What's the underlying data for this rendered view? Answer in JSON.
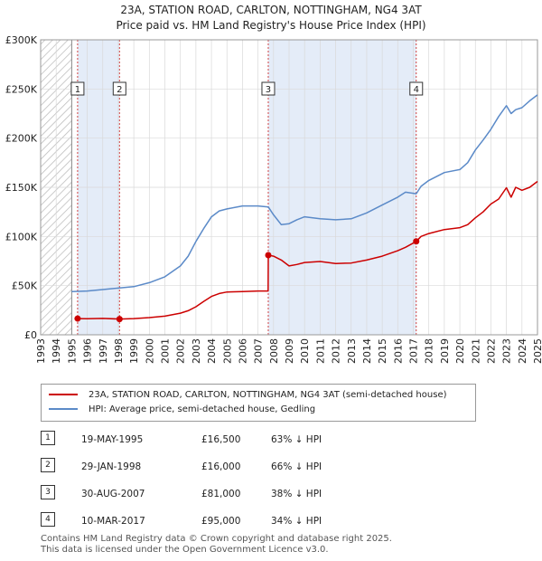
{
  "title_line1": "23A, STATION ROAD, CARLTON, NOTTINGHAM, NG4 3AT",
  "title_line2": "Price paid vs. HM Land Registry's House Price Index (HPI)",
  "legend": {
    "red_label": "23A, STATION ROAD, CARLTON, NOTTINGHAM, NG4 3AT (semi-detached house)",
    "blue_label": "HPI: Average price, semi-detached house, Gedling",
    "red_color": "#cc0000",
    "blue_color": "#5b8ac8"
  },
  "sales": [
    {
      "num": "1",
      "date": "19-MAY-1995",
      "price": "£16,500",
      "hpi": "63% ↓ HPI"
    },
    {
      "num": "2",
      "date": "29-JAN-1998",
      "price": "£16,000",
      "hpi": "66% ↓ HPI"
    },
    {
      "num": "3",
      "date": "30-AUG-2007",
      "price": "£81,000",
      "hpi": "38% ↓ HPI"
    },
    {
      "num": "4",
      "date": "10-MAR-2017",
      "price": "£95,000",
      "hpi": "34% ↓ HPI"
    }
  ],
  "footer_line1": "Contains HM Land Registry data © Crown copyright and database right 2025.",
  "footer_line2": "This data is licensed under the Open Government Licence v3.0.",
  "chart_data": {
    "type": "line",
    "title": "23A, STATION ROAD, CARLTON, NOTTINGHAM, NG4 3AT",
    "xlim": [
      1993,
      2025
    ],
    "ylim": [
      0,
      300000
    ],
    "x_ticks": [
      1993,
      1994,
      1995,
      1996,
      1997,
      1998,
      1999,
      2000,
      2001,
      2002,
      2003,
      2004,
      2005,
      2006,
      2007,
      2008,
      2009,
      2010,
      2011,
      2012,
      2013,
      2014,
      2015,
      2016,
      2017,
      2018,
      2019,
      2020,
      2021,
      2022,
      2023,
      2024,
      2025
    ],
    "y_ticks": [
      0,
      50000,
      100000,
      150000,
      200000,
      250000,
      300000
    ],
    "y_tick_labels": [
      "£0",
      "£50K",
      "£100K",
      "£150K",
      "£200K",
      "£250K",
      "£300K"
    ],
    "hatch_until": 1995.0,
    "shaded_ranges": [
      [
        1995.38,
        1998.08
      ],
      [
        2007.66,
        2017.19
      ]
    ],
    "series": [
      {
        "name": "23A, STATION ROAD, CARLTON, NOTTINGHAM, NG4 3AT (semi-detached house)",
        "color": "#cc0000",
        "x": [
          1995.38,
          1996,
          1997,
          1998.08,
          1999,
          2000,
          2001,
          2002,
          2002.5,
          2003,
          2003.5,
          2004,
          2004.5,
          2005,
          2006,
          2007,
          2007.65,
          2007.66,
          2008,
          2008.5,
          2009,
          2009.5,
          2010,
          2011,
          2012,
          2013,
          2014,
          2015,
          2016,
          2016.5,
          2017.19,
          2017.5,
          2018,
          2019,
          2020,
          2020.5,
          2021,
          2021.5,
          2022,
          2022.5,
          2023,
          2023.3,
          2023.6,
          2024,
          2024.5,
          2025
        ],
        "y": [
          16500,
          16300,
          16700,
          16000,
          16500,
          17500,
          19000,
          22000,
          24500,
          28500,
          34000,
          39000,
          42000,
          43500,
          44000,
          44500,
          44500,
          81000,
          80000,
          76000,
          70000,
          71500,
          73500,
          74500,
          72500,
          73000,
          76000,
          80000,
          85500,
          89000,
          95000,
          100000,
          103000,
          107000,
          109000,
          112000,
          119000,
          125000,
          133000,
          138000,
          149500,
          140000,
          150000,
          147000,
          150000,
          156000
        ]
      },
      {
        "name": "HPI: Average price, semi-detached house, Gedling",
        "color": "#5b8ac8",
        "x": [
          1995,
          1996,
          1997,
          1998,
          1999,
          2000,
          2001,
          2002,
          2002.5,
          2003,
          2003.5,
          2004,
          2004.5,
          2005,
          2006,
          2007,
          2007.66,
          2008,
          2008.5,
          2009,
          2009.5,
          2010,
          2011,
          2012,
          2013,
          2014,
          2015,
          2016,
          2016.5,
          2017.19,
          2017.5,
          2018,
          2019,
          2020,
          2020.5,
          2021,
          2021.5,
          2022,
          2022.5,
          2023,
          2023.3,
          2023.6,
          2024,
          2024.5,
          2025
        ],
        "y": [
          44000,
          44500,
          46000,
          47500,
          49000,
          53000,
          59000,
          70000,
          80000,
          95000,
          108000,
          120000,
          126000,
          128000,
          131000,
          131000,
          130000,
          122000,
          112000,
          113000,
          117000,
          120000,
          118000,
          117000,
          118000,
          124000,
          132000,
          140000,
          145000,
          143500,
          151000,
          157000,
          165000,
          168000,
          175000,
          188000,
          198000,
          209000,
          222000,
          233000,
          225000,
          229000,
          231000,
          238000,
          244000
        ]
      }
    ],
    "sale_points": [
      {
        "label": "1",
        "x": 1995.38,
        "y": 16500
      },
      {
        "label": "2",
        "x": 1998.08,
        "y": 16000
      },
      {
        "label": "3",
        "x": 2007.66,
        "y": 81000
      },
      {
        "label": "4",
        "x": 2017.19,
        "y": 95000
      }
    ]
  }
}
